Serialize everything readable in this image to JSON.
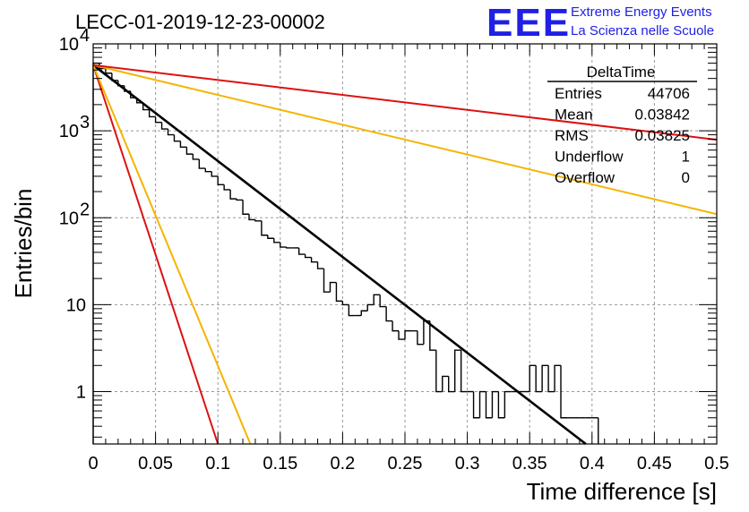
{
  "chart_data": {
    "type": "line",
    "title": "LECC-01-2019-12-23-00002",
    "xlabel": "Time difference [s]",
    "ylabel": "Entries/bin",
    "xlim": [
      0,
      0.5
    ],
    "ylim": [
      0.25,
      10000
    ],
    "y_scale": "log",
    "grid": true,
    "x_ticks": [
      "0",
      "0.05",
      "0.1",
      "0.15",
      "0.2",
      "0.25",
      "0.3",
      "0.35",
      "0.4",
      "0.45",
      "0.5"
    ],
    "y_ticks": [
      {
        "label": "1",
        "value": 1
      },
      {
        "label": "10",
        "value": 10
      },
      {
        "label": "10",
        "sup": "2",
        "value": 100
      },
      {
        "label": "10",
        "sup": "3",
        "value": 1000
      },
      {
        "label": "10",
        "sup": "4",
        "value": 10000
      }
    ],
    "histogram": {
      "bin_width": 0.005,
      "counts": [
        6000,
        5200,
        4600,
        3800,
        3300,
        2850,
        2400,
        2100,
        1750,
        1450,
        1250,
        1050,
        900,
        760,
        650,
        540,
        470,
        370,
        340,
        300,
        240,
        210,
        165,
        160,
        110,
        95,
        92,
        63,
        58,
        52,
        46,
        45,
        45,
        38,
        35,
        31,
        26,
        14,
        18,
        11,
        10,
        7.5,
        7.5,
        8.5,
        10,
        13,
        9.5,
        6.5,
        5,
        4,
        5,
        5,
        3.5,
        6.5,
        3,
        1,
        1.5,
        1,
        3,
        1,
        1,
        0.5,
        1,
        0.5,
        1,
        0.5,
        1,
        1,
        1,
        1,
        2,
        1,
        2,
        1,
        2,
        0.5,
        0.5,
        0.5,
        0.5,
        0.5,
        0.5
      ]
    },
    "series": [
      {
        "color": "#000000",
        "values": [
          [
            0,
            5700
          ],
          [
            0.395,
            0.25
          ]
        ]
      },
      {
        "color": "#dd1111",
        "values": [
          [
            0,
            5700
          ],
          [
            0.1,
            0.25
          ]
        ]
      },
      {
        "color": "#f5b400",
        "values": [
          [
            0,
            5700
          ],
          [
            0.126,
            0.25
          ]
        ]
      },
      {
        "color": "#f5b400",
        "values": [
          [
            0,
            5700
          ],
          [
            0.5,
            110
          ]
        ]
      },
      {
        "color": "#dd1111",
        "values": [
          [
            0,
            5700
          ],
          [
            0.5,
            790
          ]
        ]
      }
    ]
  },
  "stats": {
    "title": "DeltaTime",
    "rows": [
      {
        "label": "Entries",
        "value": "44706"
      },
      {
        "label": "Mean",
        "value": "0.03842"
      },
      {
        "label": "RMS",
        "value": "0.03825"
      },
      {
        "label": "Underflow",
        "value": "1"
      },
      {
        "label": "Overflow",
        "value": "0"
      }
    ]
  },
  "brand": {
    "logo": "EEE",
    "line1": "Extreme Energy Events",
    "line2": "La Scienza nelle Scuole"
  }
}
